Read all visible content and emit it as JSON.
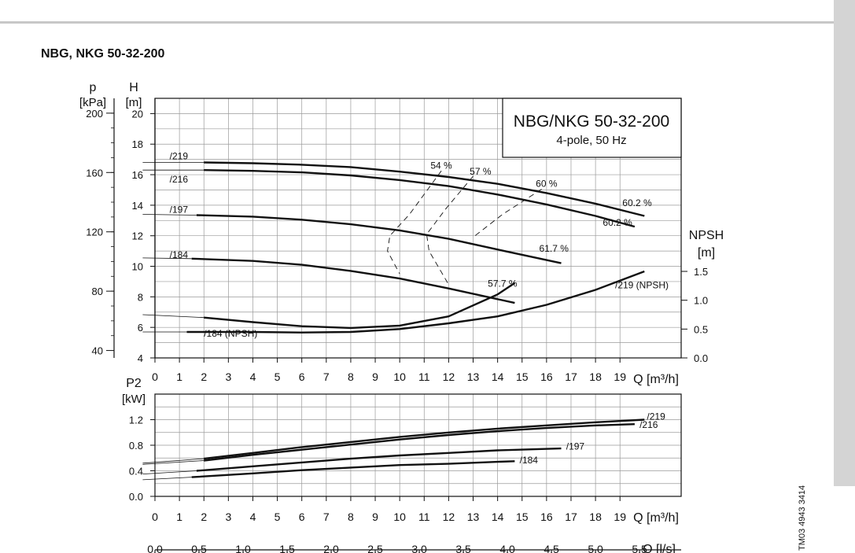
{
  "page": {
    "title": "NBG, NKG 50-32-200",
    "side_code": "TM03 4943 3414"
  },
  "chart_data": [
    {
      "type": "line",
      "legend_box": {
        "title": "NBG/NKG 50-32-200",
        "subtitle": "4-pole, 50 Hz"
      },
      "x_axis": {
        "label": "Q [m³/h]",
        "range": [
          0,
          21.5
        ],
        "ticks": [
          0,
          1,
          2,
          3,
          4,
          5,
          6,
          7,
          8,
          9,
          10,
          11,
          12,
          13,
          14,
          15,
          16,
          17,
          18,
          19
        ]
      },
      "y_axis_left": {
        "label_top": "H",
        "label_unit": "[m]",
        "range": [
          4,
          21
        ],
        "ticks": [
          4,
          6,
          8,
          10,
          12,
          14,
          16,
          18,
          20
        ]
      },
      "y_axis_pressure": {
        "label_top": "p",
        "label_unit": "[kPa]",
        "ticks": [
          40,
          80,
          120,
          160,
          200
        ]
      },
      "y_axis_right": {
        "label_top": "NPSH",
        "label_unit": "[m]",
        "ticks": [
          "0.0",
          "0.5",
          "1.0",
          "1.5"
        ],
        "range": [
          0,
          4.5
        ]
      },
      "grid": true,
      "series": [
        {
          "name": "/219",
          "x": [
            -0.5,
            2,
            4,
            6,
            8,
            10,
            12,
            14,
            16,
            18,
            20
          ],
          "y": [
            16.8,
            16.8,
            16.75,
            16.65,
            16.5,
            16.2,
            15.85,
            15.4,
            14.8,
            14.1,
            13.3
          ]
        },
        {
          "name": "/216",
          "x": [
            -0.5,
            2,
            4,
            6,
            8,
            10,
            12,
            14,
            16,
            18,
            19.6
          ],
          "y": [
            16.3,
            16.3,
            16.25,
            16.15,
            15.95,
            15.65,
            15.25,
            14.7,
            14.05,
            13.3,
            12.6
          ]
        },
        {
          "name": "/197",
          "x": [
            -0.5,
            1.7,
            4,
            6,
            8,
            10,
            12,
            14,
            16.6
          ],
          "y": [
            13.4,
            13.35,
            13.25,
            13.05,
            12.75,
            12.35,
            11.8,
            11.1,
            10.2
          ]
        },
        {
          "name": "/184",
          "x": [
            -0.5,
            1.5,
            4,
            6,
            8,
            10,
            12,
            14,
            14.7
          ],
          "y": [
            10.55,
            10.5,
            10.35,
            10.1,
            9.7,
            9.2,
            8.55,
            7.85,
            7.6
          ]
        }
      ],
      "npsh_series": [
        {
          "name": "/219 (NPSH)",
          "x": [
            -0.5,
            1.3,
            4,
            6,
            8,
            10,
            12,
            14,
            16,
            18,
            20
          ],
          "y": [
            0.45,
            0.45,
            0.45,
            0.44,
            0.45,
            0.5,
            0.6,
            0.72,
            0.92,
            1.18,
            1.5
          ]
        },
        {
          "name": "/184 (NPSH)",
          "x": [
            -0.5,
            2,
            4,
            6,
            8,
            10,
            12,
            14,
            14.7
          ],
          "y": [
            0.75,
            0.7,
            0.62,
            0.55,
            0.52,
            0.56,
            0.72,
            1.1,
            1.3
          ]
        }
      ],
      "efficiency_labels": [
        {
          "text": "54 %",
          "x": 11.7,
          "y": 16.4
        },
        {
          "text": "57 %",
          "x": 13.3,
          "y": 16.0
        },
        {
          "text": "60 %",
          "x": 16.0,
          "y": 15.2
        },
        {
          "text": "60.2 %",
          "x": 19.7,
          "y": 13.95
        },
        {
          "text": "60.2 %",
          "x": 18.9,
          "y": 12.65
        },
        {
          "text": "61.7 %",
          "x": 16.3,
          "y": 10.95
        },
        {
          "text": "57.7 %",
          "x": 14.2,
          "y": 8.65
        }
      ],
      "efficiency_contours": [
        {
          "x": [
            11.7,
            10.4,
            9.6,
            9.5,
            10.0
          ],
          "y": [
            16.25,
            13.4,
            12.0,
            11.0,
            9.5
          ]
        },
        {
          "x": [
            13.0,
            11.9,
            11.1,
            11.2,
            12.0
          ],
          "y": [
            15.9,
            13.8,
            12.1,
            11.0,
            8.8
          ]
        },
        {
          "x": [
            15.8,
            14.2,
            13.0
          ],
          "y": [
            15.05,
            13.4,
            11.9
          ]
        }
      ],
      "curve_labels": [
        {
          "text": "/219",
          "x": 0.6,
          "y": 17.0
        },
        {
          "text": "/216",
          "x": 0.6,
          "y": 15.5
        },
        {
          "text": "/197",
          "x": 0.6,
          "y": 13.5
        },
        {
          "text": "/184",
          "x": 0.6,
          "y": 10.55
        },
        {
          "text": "/184 (NPSH)",
          "x": 2.0,
          "y": 5.4
        },
        {
          "text": "/219 (NPSH)",
          "x": 18.8,
          "y": 8.55
        }
      ]
    },
    {
      "type": "line",
      "x_axis": {
        "label": "Q [m³/h]",
        "range": [
          0,
          21.5
        ],
        "ticks": [
          0,
          1,
          2,
          3,
          4,
          5,
          6,
          7,
          8,
          9,
          10,
          11,
          12,
          13,
          14,
          15,
          16,
          17,
          18,
          19
        ]
      },
      "x_axis_secondary": {
        "label": "Q [l/s]",
        "ticks": [
          "0.0",
          "0.5",
          "1.0",
          "1.5",
          "2.0",
          "2.5",
          "3.0",
          "3.5",
          "4.0",
          "4.5",
          "5.0",
          "5.5"
        ],
        "values": [
          0,
          0.5,
          1,
          1.5,
          2,
          2.5,
          3,
          3.5,
          4,
          4.5,
          5,
          5.5
        ]
      },
      "y_axis": {
        "label_top": "P2",
        "label_unit": "[kW]",
        "range": [
          0,
          1.6
        ],
        "ticks": [
          "0.0",
          "0.4",
          "0.8",
          "1.2"
        ]
      },
      "grid": true,
      "series": [
        {
          "name": "/219",
          "x": [
            -0.5,
            2,
            4,
            6,
            8,
            10,
            12,
            14,
            16,
            18,
            20
          ],
          "y": [
            0.52,
            0.59,
            0.68,
            0.77,
            0.85,
            0.93,
            1.0,
            1.06,
            1.11,
            1.16,
            1.2
          ]
        },
        {
          "name": "/216",
          "x": [
            -0.5,
            2,
            4,
            6,
            8,
            10,
            12,
            14,
            16,
            18,
            19.6
          ],
          "y": [
            0.5,
            0.56,
            0.65,
            0.73,
            0.81,
            0.89,
            0.96,
            1.02,
            1.07,
            1.11,
            1.13
          ]
        },
        {
          "name": "/197",
          "x": [
            -0.5,
            1.7,
            4,
            6,
            8,
            10,
            12,
            14,
            16.6
          ],
          "y": [
            0.35,
            0.4,
            0.47,
            0.53,
            0.59,
            0.64,
            0.68,
            0.72,
            0.75
          ]
        },
        {
          "name": "/184",
          "x": [
            -0.5,
            1.5,
            4,
            6,
            8,
            10,
            12,
            14,
            14.7
          ],
          "y": [
            0.26,
            0.3,
            0.36,
            0.41,
            0.45,
            0.49,
            0.51,
            0.54,
            0.55
          ]
        }
      ],
      "curve_labels": [
        {
          "text": "/219",
          "x": 20.1,
          "y": 1.2
        },
        {
          "text": "/216",
          "x": 19.8,
          "y": 1.07
        },
        {
          "text": "/197",
          "x": 16.8,
          "y": 0.73
        },
        {
          "text": "/184",
          "x": 14.9,
          "y": 0.52
        }
      ]
    }
  ]
}
